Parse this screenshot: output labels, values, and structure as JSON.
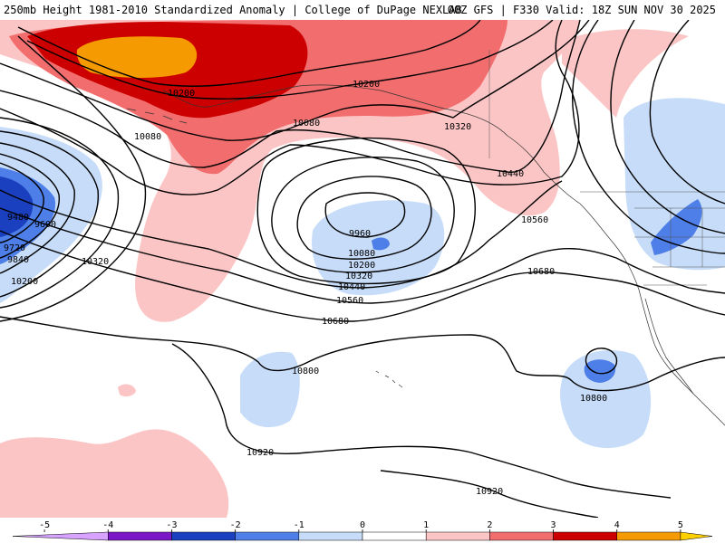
{
  "header": {
    "title_left": "250mb Height 1981-2010 Standardized Anomaly | College of DuPage NEXLAB",
    "title_right": "00Z GFS | F330 Valid: 18Z SUN NOV 30 2025"
  },
  "colors": {
    "pos1": "#fcc5c5",
    "pos2": "#f26e6e",
    "pos3": "#cc0000",
    "pos4": "#f59a00",
    "neg1": "#c6dcf8",
    "neg2": "#4e7fe8",
    "neg3": "#1a3fbf",
    "contour": "#000000"
  },
  "contour_labels": [
    {
      "id": "c10200-a",
      "text": "10200"
    },
    {
      "id": "c10200-b",
      "text": "10200"
    },
    {
      "id": "c10080-a",
      "text": "10080"
    },
    {
      "id": "c10080-b",
      "text": "10080"
    },
    {
      "id": "c10320-a",
      "text": "10320"
    },
    {
      "id": "c10440-a",
      "text": "10440"
    },
    {
      "id": "c10560-a",
      "text": "10560"
    },
    {
      "id": "c9480",
      "text": "9480"
    },
    {
      "id": "c9600",
      "text": "9600"
    },
    {
      "id": "c9720",
      "text": "9720"
    },
    {
      "id": "c9840",
      "text": "9840"
    },
    {
      "id": "c10320-b",
      "text": "10320"
    },
    {
      "id": "c10200-c",
      "text": "10200"
    },
    {
      "id": "c9960",
      "text": "9960"
    },
    {
      "id": "c10080-c",
      "text": "10080"
    },
    {
      "id": "c10200-d",
      "text": "10200"
    },
    {
      "id": "c10320-c",
      "text": "10320"
    },
    {
      "id": "c10440-b",
      "text": "10440"
    },
    {
      "id": "c10560-b",
      "text": "10560"
    },
    {
      "id": "c10680-a",
      "text": "10680"
    },
    {
      "id": "c10680-b",
      "text": "10680"
    },
    {
      "id": "c10800-a",
      "text": "10800"
    },
    {
      "id": "c10800-b",
      "text": "10800"
    },
    {
      "id": "c10920-a",
      "text": "10920"
    },
    {
      "id": "c10920-b",
      "text": "10920"
    }
  ],
  "legend": {
    "ticks": [
      "-5",
      "-4",
      "-3",
      "-2",
      "-1",
      "0",
      "1",
      "2",
      "3",
      "4",
      "5"
    ],
    "bins": [
      {
        "from": -5.5,
        "to": -4,
        "color": "#d7a3ff"
      },
      {
        "from": -4,
        "to": -3,
        "color": "#7a18c8"
      },
      {
        "from": -3,
        "to": -2,
        "color": "#1a3fbf"
      },
      {
        "from": -2,
        "to": -1,
        "color": "#4e7fe8"
      },
      {
        "from": -1,
        "to": 0,
        "color": "#c6dcf8"
      },
      {
        "from": 0,
        "to": 1,
        "color": "#ffffff"
      },
      {
        "from": 1,
        "to": 2,
        "color": "#fcc5c5"
      },
      {
        "from": 2,
        "to": 3,
        "color": "#f26e6e"
      },
      {
        "from": 3,
        "to": 4,
        "color": "#cc0000"
      },
      {
        "from": 4,
        "to": 5,
        "color": "#f59a00"
      },
      {
        "from": 5,
        "to": 5.5,
        "color": "#ffd000"
      }
    ]
  }
}
